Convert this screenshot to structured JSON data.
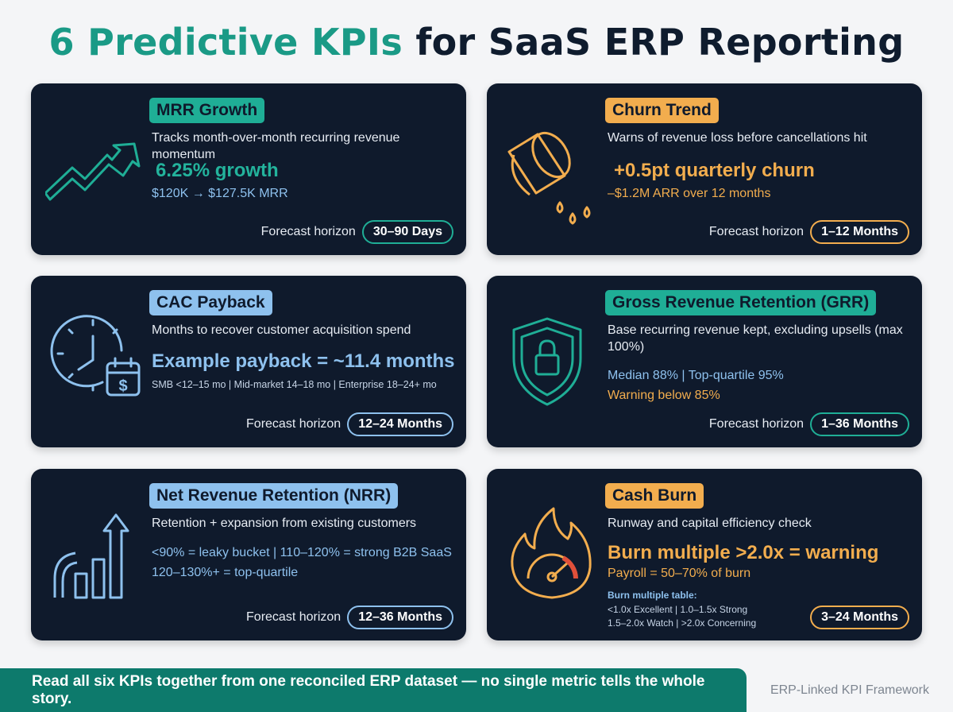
{
  "title": {
    "accent": "6 Predictive KPIs",
    "rest": " for SaaS ERP Reporting"
  },
  "colors": {
    "teal": "#1fae96",
    "orange": "#f2ad4e",
    "blue": "#8ec1ee",
    "card": "#0f1a2c",
    "footer": "#0d7a6c"
  },
  "cards": [
    {
      "icon": "trend-up-arrow-icon",
      "badge": "MRR Growth",
      "desc": "Tracks month-over-month recurring revenue momentum",
      "highlight": "6.25% growth",
      "detail": "$120K → $127.5K MRR",
      "horizon_label": "Forecast horizon",
      "horizon_value": "30–90 Days"
    },
    {
      "icon": "leaking-bucket-icon",
      "badge": "Churn Trend",
      "desc": "Warns of revenue loss before cancellations hit",
      "highlight": "+0.5pt quarterly churn",
      "detail": "–$1.2M ARR over 12 months",
      "horizon_label": "Forecast horizon",
      "horizon_value": "1–12 Months"
    },
    {
      "icon": "clock-calendar-dollar-icon",
      "badge": "CAC Payback",
      "desc": "Months to recover customer acquisition spend",
      "highlight": "Example payback = ~11.4 months",
      "detail": "SMB <12–15 mo | Mid-market 14–18 mo | Enterprise 18–24+ mo",
      "horizon_label": "Forecast horizon",
      "horizon_value": "12–24 Months"
    },
    {
      "icon": "shield-lock-icon",
      "badge": "Gross Revenue Retention (GRR)",
      "desc": "Base recurring revenue kept, excluding upsells (max 100%)",
      "line1": "Median 88% | Top-quartile 95%",
      "line2": "Warning below 85%",
      "horizon_label": "Forecast horizon",
      "horizon_value": "1–36 Months"
    },
    {
      "icon": "bar-growth-arrow-icon",
      "badge": "Net Revenue Retention (NRR)",
      "desc": "Retention + expansion from existing customers",
      "line1": "<90% = leaky bucket | 110–120% = strong B2B SaaS",
      "line2": "120–130%+ = top-quartile",
      "horizon_label": "Forecast horizon",
      "horizon_value": "12–36 Months"
    },
    {
      "icon": "flame-gauge-icon",
      "badge": "Cash Burn",
      "desc": "Runway and capital efficiency check",
      "highlight": "Burn multiple >2.0x = warning",
      "detail": "Payroll = 50–70% of burn",
      "table_head": "Burn multiple table:",
      "table_row1": "<1.0x Excellent | 1.0–1.5x Strong",
      "table_row2": "1.5–2.0x Watch | >2.0x Concerning",
      "horizon_value": "3–24 Months"
    }
  ],
  "footer": {
    "message": "Read all six KPIs together from one reconciled ERP dataset — no single metric tells the whole story.",
    "brand": "ERP-Linked KPI Framework"
  }
}
